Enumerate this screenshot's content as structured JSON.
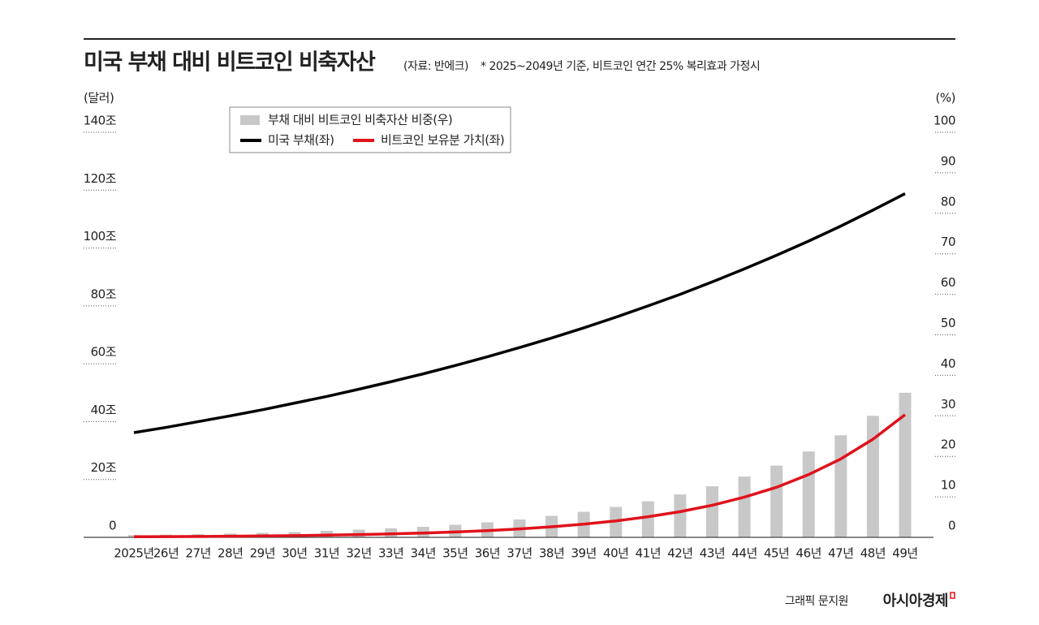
{
  "chart_data": {
    "type": "combo",
    "title": "미국 부채 대비 비트코인 비축자산",
    "source": "(자료: 반에크)",
    "note": "* 2025~2049년 기준, 비트코인 연간 25% 복리효과 가정시",
    "y_axis_label": "(달러)",
    "y2_axis_label": "(%)",
    "categories": [
      "2025년",
      "26년",
      "27년",
      "28년",
      "29년",
      "30년",
      "31년",
      "32년",
      "33년",
      "34년",
      "35년",
      "36년",
      "37년",
      "38년",
      "39년",
      "40년",
      "41년",
      "42년",
      "43년",
      "44년",
      "45년",
      "46년",
      "47년",
      "48년",
      "49년"
    ],
    "series": [
      {
        "name": "부채 대비 비트코인 비축자산 비중(우)",
        "type": "bar",
        "axis": "y2",
        "color": "#c8c8c8",
        "values": [
          0.55,
          0.66,
          0.78,
          0.93,
          1.1,
          1.3,
          1.6,
          1.9,
          2.2,
          2.6,
          3.1,
          3.7,
          4.4,
          5.3,
          6.3,
          7.5,
          8.9,
          10.6,
          12.6,
          15.0,
          17.7,
          21.2,
          25.2,
          30.0,
          35.7
        ]
      },
      {
        "name": "미국 부채(좌)",
        "type": "line",
        "color": "#000000",
        "values": [
          36.2,
          38.0,
          40.0,
          42.0,
          44.1,
          46.4,
          48.7,
          51.2,
          53.8,
          56.5,
          59.4,
          62.4,
          65.6,
          68.9,
          72.4,
          76.1,
          80.0,
          84.0,
          88.3,
          92.8,
          97.5,
          102.4,
          107.6,
          113.1,
          118.8
        ]
      },
      {
        "name": "비트코인 보유분 가치(좌)",
        "type": "line",
        "color": "#e0121b",
        "values": [
          0.2,
          0.25,
          0.31,
          0.39,
          0.49,
          0.61,
          0.76,
          0.95,
          1.19,
          1.49,
          1.86,
          2.33,
          2.91,
          3.64,
          4.55,
          5.68,
          7.11,
          8.88,
          11.1,
          13.9,
          17.3,
          21.7,
          27.1,
          33.9,
          42.4
        ]
      }
    ],
    "ylim": [
      0,
      140
    ],
    "yticks": [
      0,
      {
        "value": 20,
        "label": "20조"
      },
      {
        "value": 40,
        "label": "40조"
      },
      {
        "value": 60,
        "label": "60조"
      },
      {
        "value": 80,
        "label": "80조"
      },
      {
        "value": 100,
        "label": "100조"
      },
      {
        "value": 120,
        "label": "120조"
      },
      {
        "value": 140,
        "label": "140조"
      }
    ],
    "y2lim": [
      0,
      100
    ],
    "y2ticks": [
      0,
      10,
      20,
      30,
      40,
      50,
      60,
      70,
      80,
      90,
      100
    ]
  },
  "footer": {
    "credit": "그래픽 문지원",
    "brand": "아시아경제"
  }
}
